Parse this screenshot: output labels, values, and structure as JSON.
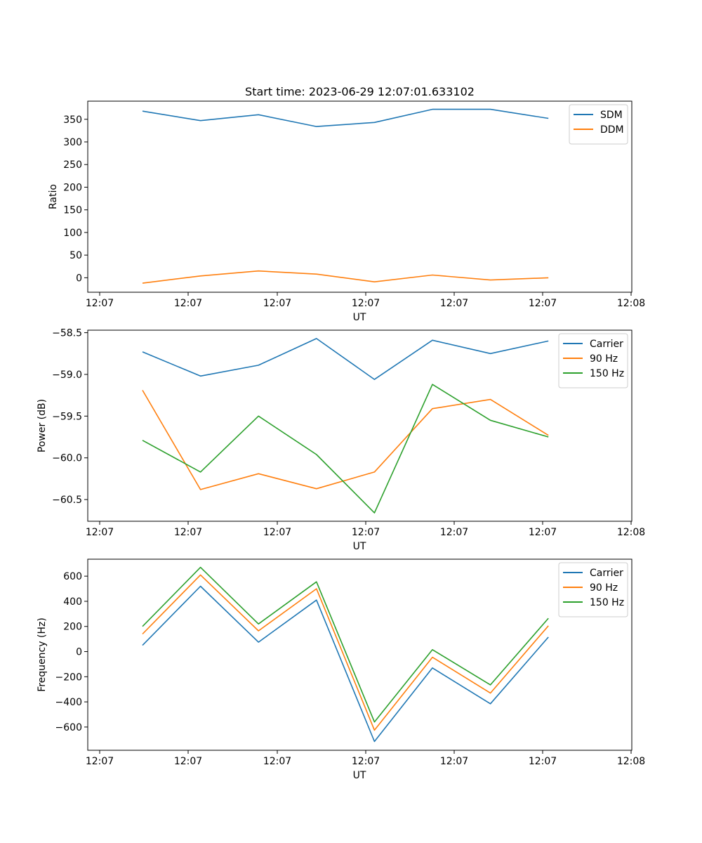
{
  "figure": {
    "title": "Start time: 2023-06-29 12:07:01.633102"
  },
  "chart_data": [
    {
      "type": "line",
      "xlabel": "UT",
      "ylabel": "Ratio",
      "x_tick_labels": [
        "12:07",
        "12:07",
        "12:07",
        "12:07",
        "12:07",
        "12:07",
        "12:08"
      ],
      "y_ticks": [
        0,
        50,
        100,
        150,
        200,
        250,
        300,
        350
      ],
      "ylim": [
        -32,
        390
      ],
      "legend_position": "upper right",
      "series": [
        {
          "name": "SDM",
          "color": "#1f77b4",
          "values": [
            368,
            347,
            360,
            334,
            343,
            372,
            372,
            352
          ]
        },
        {
          "name": "DDM",
          "color": "#ff7f0e",
          "values": [
            -12,
            4,
            15,
            8,
            -9,
            6,
            -5,
            0
          ]
        }
      ]
    },
    {
      "type": "line",
      "xlabel": "UT",
      "ylabel": "Power (dB)",
      "x_tick_labels": [
        "12:07",
        "12:07",
        "12:07",
        "12:07",
        "12:07",
        "12:07",
        "12:08"
      ],
      "y_ticks": [
        -60.5,
        -60.0,
        -59.5,
        -59.0,
        -58.5
      ],
      "y_tick_labels": [
        "−60.5",
        "−60.0",
        "−59.5",
        "−59.0",
        "−58.5"
      ],
      "ylim": [
        -60.76,
        -58.47
      ],
      "legend_position": "upper right",
      "series": [
        {
          "name": "Carrier",
          "color": "#1f77b4",
          "values": [
            -58.73,
            -59.02,
            -58.89,
            -58.57,
            -59.06,
            -58.59,
            -58.75,
            -58.6
          ]
        },
        {
          "name": "90 Hz",
          "color": "#ff7f0e",
          "values": [
            -59.19,
            -60.38,
            -60.19,
            -60.37,
            -60.17,
            -59.41,
            -59.3,
            -59.73
          ]
        },
        {
          "name": "150 Hz",
          "color": "#2ca02c",
          "values": [
            -59.79,
            -60.17,
            -59.5,
            -59.96,
            -60.66,
            -59.12,
            -59.55,
            -59.75
          ]
        }
      ]
    },
    {
      "type": "line",
      "xlabel": "UT",
      "ylabel": "Frequency (Hz)",
      "x_tick_labels": [
        "12:07",
        "12:07",
        "12:07",
        "12:07",
        "12:07",
        "12:07",
        "12:08"
      ],
      "y_ticks": [
        -600,
        -400,
        -200,
        0,
        200,
        400,
        600
      ],
      "y_tick_labels": [
        "−600",
        "−400",
        "−200",
        "0",
        "200",
        "400",
        "600"
      ],
      "ylim": [
        -785,
        735
      ],
      "legend_position": "upper right",
      "series": [
        {
          "name": "Carrier",
          "color": "#1f77b4",
          "values": [
            50,
            520,
            75,
            410,
            -715,
            -130,
            -415,
            115
          ]
        },
        {
          "name": "90 Hz",
          "color": "#ff7f0e",
          "values": [
            140,
            610,
            165,
            500,
            -625,
            -45,
            -330,
            205
          ]
        },
        {
          "name": "150 Hz",
          "color": "#2ca02c",
          "values": [
            200,
            670,
            220,
            555,
            -560,
            15,
            -265,
            265
          ]
        }
      ]
    }
  ]
}
